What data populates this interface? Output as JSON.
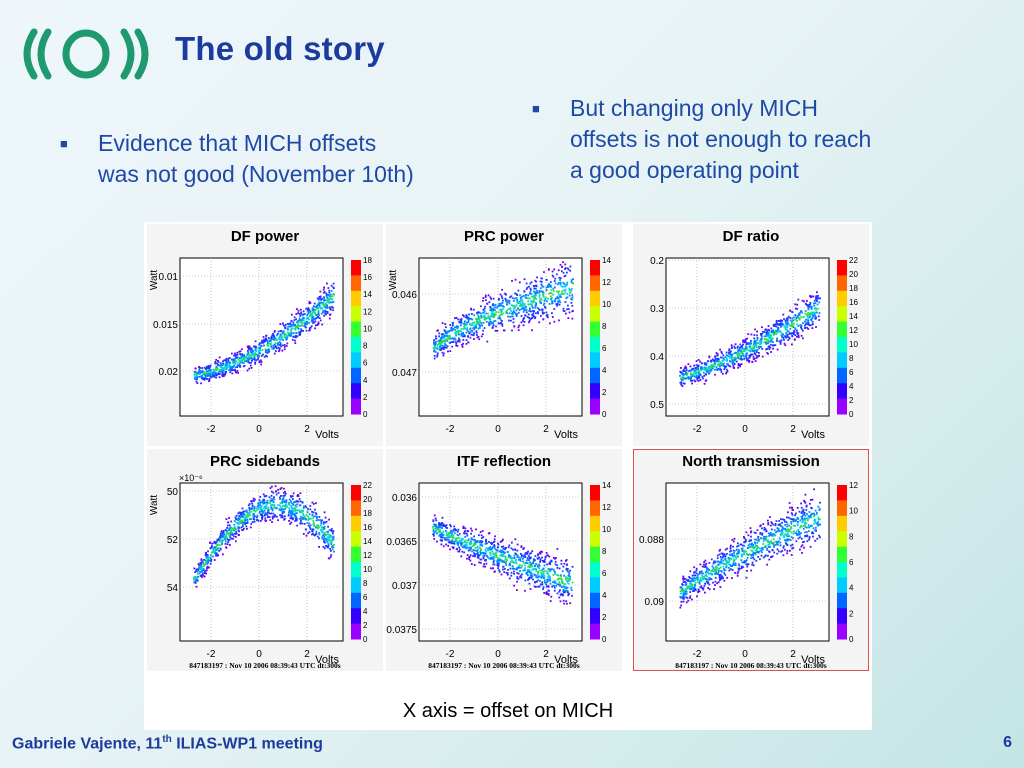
{
  "slide": {
    "title": "The old story",
    "bullets": [
      {
        "mark": "■",
        "lines": [
          "Evidence that MICH offsets",
          "was not good (November 10th)"
        ]
      },
      {
        "mark": "■",
        "lines": [
          "But changing only MICH",
          "offsets is not enough to reach",
          "a good operating point"
        ]
      }
    ],
    "caption": "X axis = offset on MICH",
    "footer": {
      "author": "Gabriele Vajente, 11",
      "superscript": "th",
      "event": " ILIAS-WP1 meeting",
      "page": "6"
    }
  },
  "colors": {
    "title": "#1c3b9c",
    "bullet_text": "#1e4aa6",
    "logo": "#1f9a6e",
    "selected_frame": "#e05050"
  },
  "chart_data": [
    {
      "type": "heatmap",
      "title": "DF power",
      "ylabel": "Watt",
      "xlabel": "Volts",
      "x_ticks": [
        "-2",
        "0",
        "2"
      ],
      "y_ticks": [
        "0.01",
        "0.015",
        "0.02"
      ],
      "scale_ticks": [
        "0",
        "2",
        "4",
        "6",
        "8",
        "10",
        "12",
        "14",
        "16",
        "18"
      ],
      "footer": ""
    },
    {
      "type": "heatmap",
      "title": "PRC power",
      "ylabel": "Watt",
      "xlabel": "Volts",
      "x_ticks": [
        "-2",
        "0",
        "2"
      ],
      "y_ticks": [
        "0.046",
        "0.047"
      ],
      "scale_ticks": [
        "0",
        "2",
        "4",
        "6",
        "8",
        "10",
        "12",
        "14"
      ],
      "footer": ""
    },
    {
      "type": "heatmap",
      "title": "DF ratio",
      "ylabel": "",
      "xlabel": "Volts",
      "x_ticks": [
        "-2",
        "0",
        "2"
      ],
      "y_ticks": [
        "0.2",
        "0.3",
        "0.4",
        "0.5"
      ],
      "scale_ticks": [
        "0",
        "2",
        "4",
        "6",
        "8",
        "10",
        "12",
        "14",
        "16",
        "18",
        "20",
        "22"
      ],
      "footer": ""
    },
    {
      "type": "heatmap",
      "title": "PRC sidebands",
      "ylabel": "Watt",
      "xlabel": "Volts",
      "yexp": "×10⁻⁶",
      "x_ticks": [
        "-2",
        "0",
        "2"
      ],
      "y_ticks": [
        "50",
        "52",
        "54"
      ],
      "scale_ticks": [
        "0",
        "2",
        "4",
        "6",
        "8",
        "10",
        "12",
        "14",
        "16",
        "18",
        "20",
        "22"
      ],
      "footer": "847183197 : Nov 10 2006 08:39:43 UTC dt:300s"
    },
    {
      "type": "heatmap",
      "title": "ITF reflection",
      "ylabel": "",
      "xlabel": "Volts",
      "x_ticks": [
        "-2",
        "0",
        "2"
      ],
      "y_ticks": [
        "0.036",
        "0.0365",
        "0.037",
        "0.0375"
      ],
      "scale_ticks": [
        "0",
        "2",
        "4",
        "6",
        "8",
        "10",
        "12",
        "14"
      ],
      "footer": "847183197 : Nov 10 2006 08:39:43 UTC dt:300s"
    },
    {
      "type": "heatmap",
      "title": "North transmission",
      "ylabel": "",
      "xlabel": "Volts",
      "x_ticks": [
        "-2",
        "0",
        "2"
      ],
      "y_ticks": [
        "0.088",
        "0.09"
      ],
      "scale_ticks": [
        "0",
        "2",
        "4",
        "6",
        "8",
        "10",
        "12"
      ],
      "footer": "847183197 : Nov 10 2006 08:39:43 UTC dt:300s"
    }
  ]
}
